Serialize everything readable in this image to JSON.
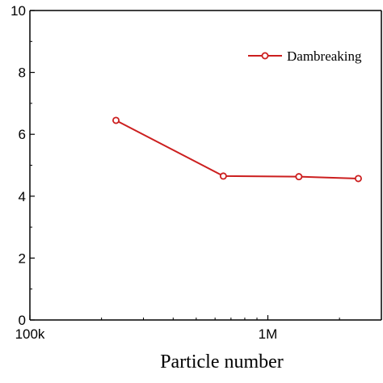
{
  "chart_data": {
    "type": "line",
    "xscale": "log",
    "xlabel": "Particle number",
    "ylabel": "",
    "xlim": [
      100000,
      3000000
    ],
    "ylim": [
      0,
      10
    ],
    "x_ticks": [
      {
        "value": 100000,
        "label": "100k"
      },
      {
        "value": 1000000,
        "label": "1M"
      }
    ],
    "y_ticks": [
      {
        "value": 0,
        "label": "0"
      },
      {
        "value": 2,
        "label": "2"
      },
      {
        "value": 4,
        "label": "4"
      },
      {
        "value": 6,
        "label": "6"
      },
      {
        "value": 8,
        "label": "8"
      },
      {
        "value": 10,
        "label": "10"
      }
    ],
    "series": [
      {
        "name": "Dambreaking",
        "color": "#cc1f1f",
        "marker": "open-circle",
        "x": [
          230000,
          650000,
          1350000,
          2400000
        ],
        "y": [
          6.45,
          4.65,
          4.63,
          4.57
        ]
      }
    ],
    "legend_position": "top-right",
    "grid": false
  }
}
